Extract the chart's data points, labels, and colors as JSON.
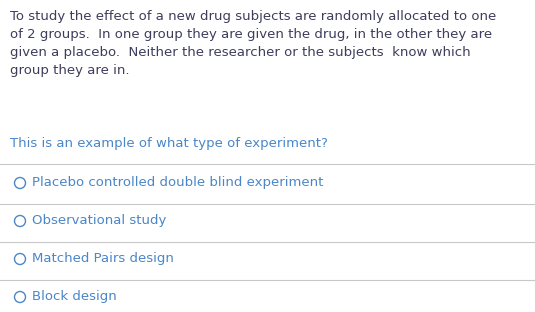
{
  "background_color": "#ffffff",
  "paragraph_text": "To study the effect of a new drug subjects are randomly allocated to one\nof 2 groups.  In one group they are given the drug, in the other they are\ngiven a placebo.  Neither the researcher or the subjects  know which\ngroup they are in.",
  "question_text": "This is an example of what type of experiment?",
  "options": [
    "Placebo controlled double blind experiment",
    "Observational study",
    "Matched Pairs design",
    "Block design"
  ],
  "text_color": "#3d3d5c",
  "question_color": "#4a86c8",
  "option_color": "#4a86c8",
  "line_color": "#c8c8c8",
  "font_size_paragraph": 9.5,
  "font_size_question": 9.5,
  "font_size_options": 9.5
}
